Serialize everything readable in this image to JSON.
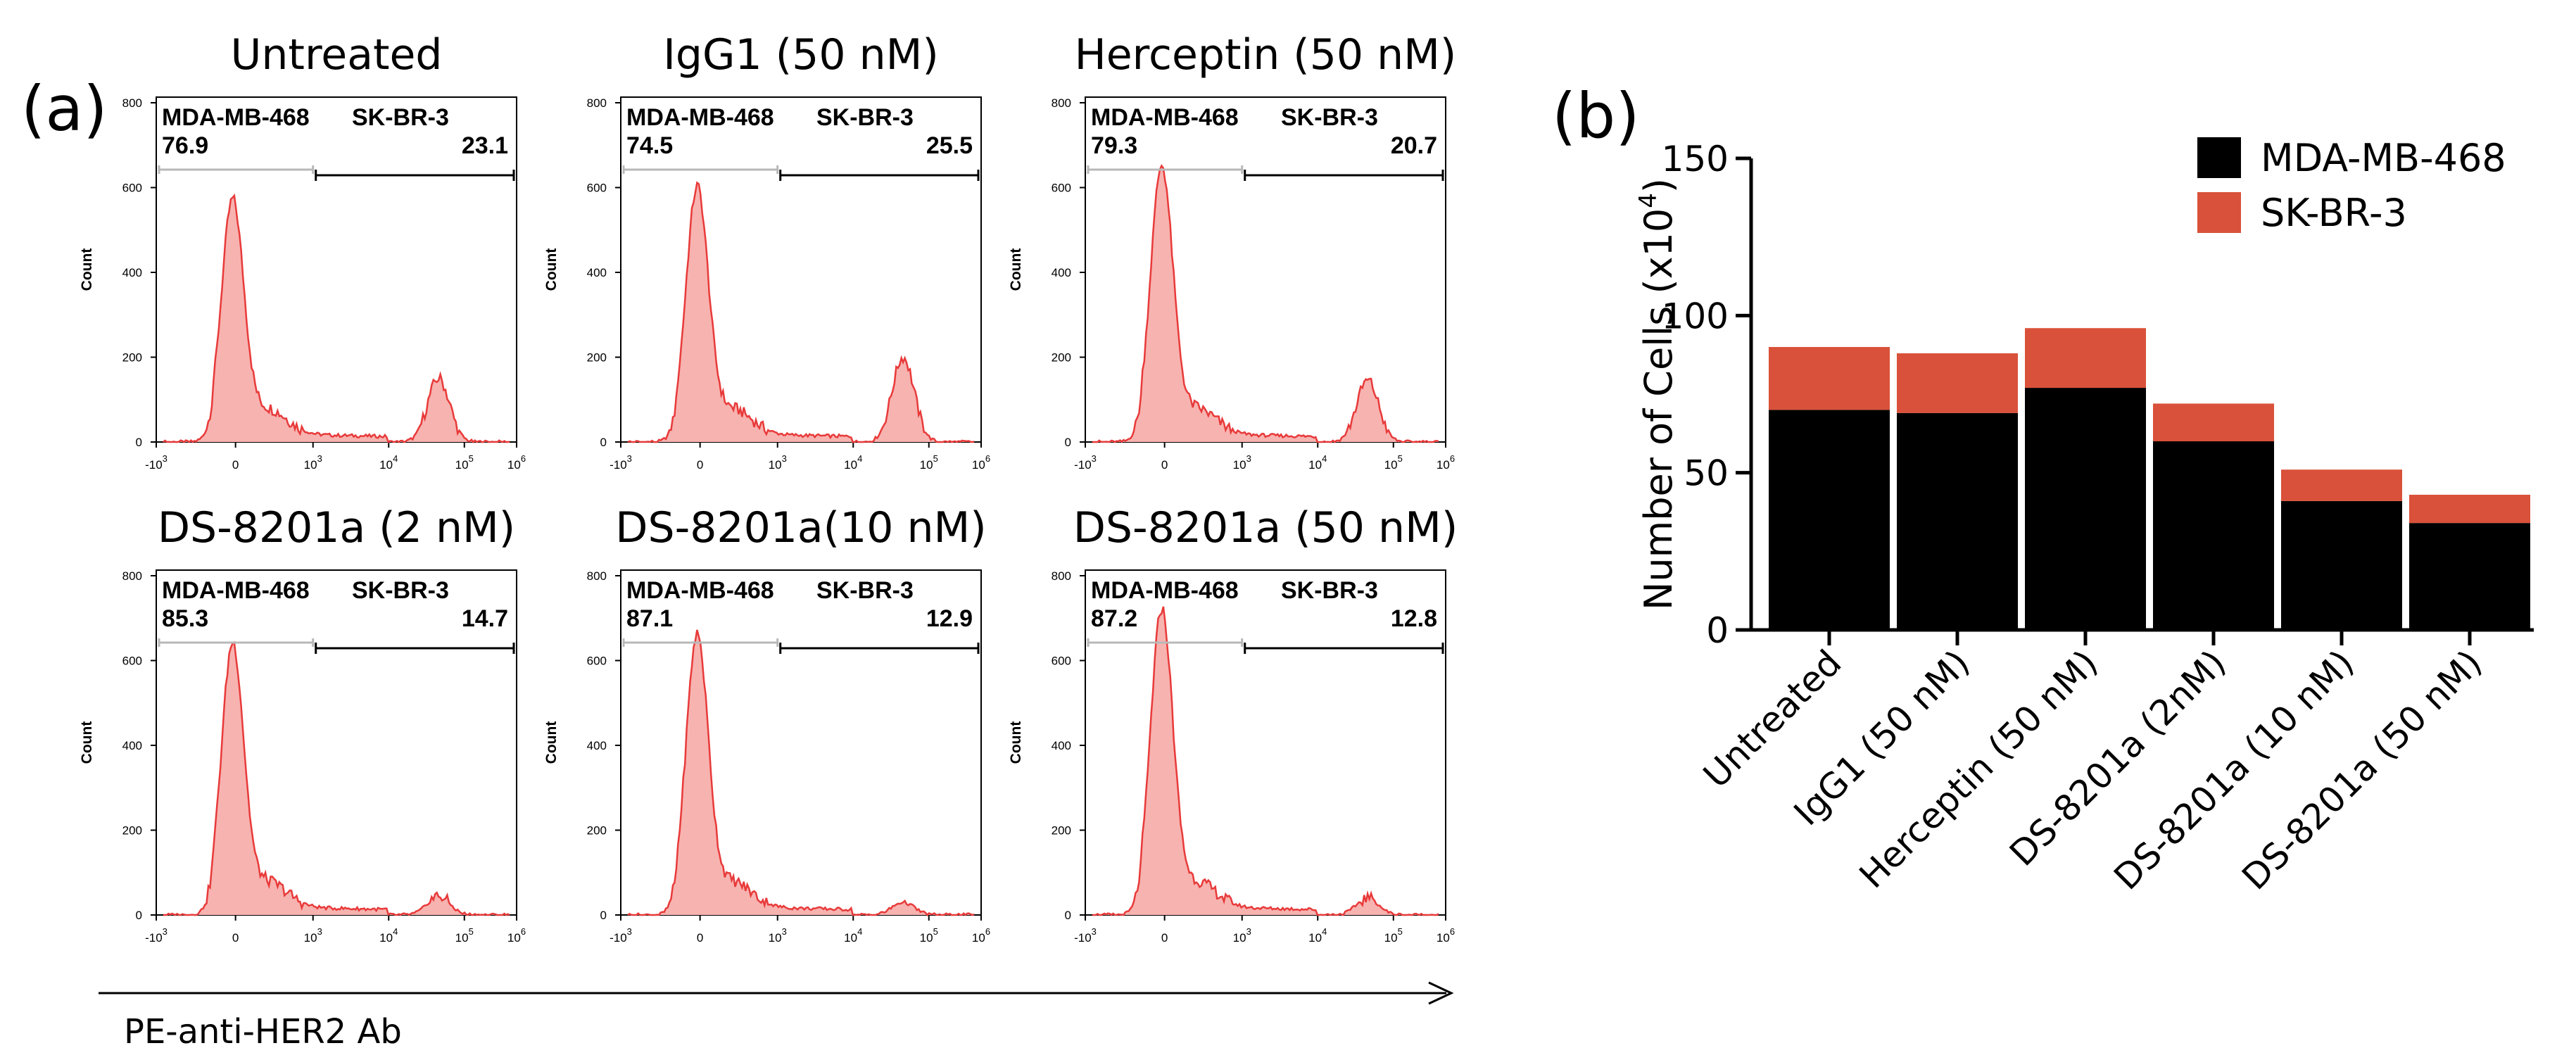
{
  "panel_a_label": "(a)",
  "panel_b_label": "(b)",
  "x_axis_label": "PE-anti-HER2 Ab",
  "hist_y_label": "Count",
  "hist_y_ticks": [
    "0",
    "200",
    "400",
    "600",
    "800"
  ],
  "hist_x_ticks": [
    {
      "base": "-10",
      "exp": "3"
    },
    {
      "base": "0",
      "exp": ""
    },
    {
      "base": "10",
      "exp": "3"
    },
    {
      "base": "10",
      "exp": "4"
    },
    {
      "base": "10",
      "exp": "5"
    },
    {
      "base": "10",
      "exp": "6"
    }
  ],
  "gate_left_label": "MDA-MB-468",
  "gate_right_label": "SK-BR-3",
  "histograms": [
    {
      "title": "Untreated",
      "left": "76.9",
      "right": "23.1",
      "peak1": 540,
      "peak2": 150
    },
    {
      "title": "IgG1 (50 nM)",
      "left": "74.5",
      "right": "25.5",
      "peak1": 570,
      "peak2": 200
    },
    {
      "title": "Herceptin (50 nM)",
      "left": "79.3",
      "right": "20.7",
      "peak1": 620,
      "peak2": 145
    },
    {
      "title": "DS-8201a (2 nM)",
      "left": "85.3",
      "right": "14.7",
      "peak1": 610,
      "peak2": 45
    },
    {
      "title": "DS-8201a(10 nM)",
      "left": "87.1",
      "right": "12.9",
      "peak1": 630,
      "peak2": 30
    },
    {
      "title": "DS-8201a (50 nM)",
      "left": "87.2",
      "right": "12.8",
      "peak1": 690,
      "peak2": 40
    }
  ],
  "chart_data": {
    "type": "bar",
    "stacked": true,
    "ylabel": "Number of Cells (x10",
    "ylabel_sup": "4",
    "ylabel_close": ")",
    "ylim": [
      0,
      150
    ],
    "yticks": [
      "0",
      "50",
      "100",
      "150"
    ],
    "categories": [
      "Untreated",
      "IgG1 (50 nM)",
      "Herceptin (50 nM)",
      "DS-8201a (2nM)",
      "DS-8201a (10 nM)",
      "DS-8201a (50 nM)"
    ],
    "series": [
      {
        "name": "MDA-MB-468",
        "color": "#000000",
        "values": [
          70,
          69,
          77,
          60,
          41,
          34
        ]
      },
      {
        "name": "SK-BR-3",
        "color": "#d9513a",
        "values": [
          20,
          19,
          19,
          12,
          10,
          9
        ]
      }
    ],
    "legend": "top-right"
  },
  "colors": {
    "hist_fill": "#f7b3b0",
    "hist_line": "#e83a3a"
  }
}
